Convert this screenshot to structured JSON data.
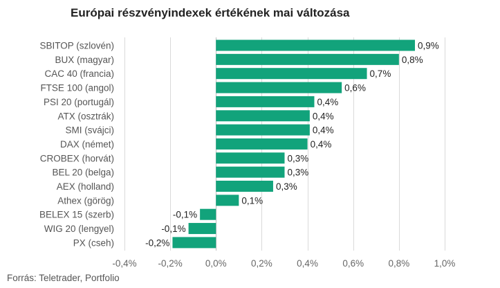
{
  "chart_data": {
    "type": "bar",
    "orientation": "horizontal",
    "title": "Európai részvényindexek értékének mai változása",
    "categories": [
      "SBITOP (szlovén)",
      "BUX (magyar)",
      "CAC 40 (francia)",
      "FTSE 100 (angol)",
      "PSI 20 (portugál)",
      "ATX (osztrák)",
      "SMI (svájci)",
      "DAX (német)",
      "CROBEX (horvát)",
      "BEL 20 (belga)",
      "AEX (holland)",
      "Athex (görög)",
      "BELEX 15 (szerb)",
      "WIG 20 (lengyel)",
      "PX (cseh)"
    ],
    "values": [
      0.87,
      0.8,
      0.66,
      0.55,
      0.43,
      0.41,
      0.41,
      0.4,
      0.3,
      0.3,
      0.25,
      0.1,
      -0.07,
      -0.12,
      -0.19
    ],
    "value_labels": [
      "0,9%",
      "0,8%",
      "0,7%",
      "0,6%",
      "0,4%",
      "0,4%",
      "0,4%",
      "0,4%",
      "0,3%",
      "0,3%",
      "0,3%",
      "0,1%",
      "-0,1%",
      "-0,1%",
      "-0,2%"
    ],
    "xlim": [
      -0.4,
      1.0
    ],
    "ticks": [
      -0.4,
      -0.2,
      0.0,
      0.2,
      0.4,
      0.6,
      0.8,
      1.0
    ],
    "tick_labels": [
      "-0,4%",
      "-0,2%",
      "0,0%",
      "0,2%",
      "0,4%",
      "0,6%",
      "0,8%",
      "1,0%"
    ],
    "grid": true,
    "bar_color": "#12a37b",
    "source": "Forrás: Teletrader, Portfolio"
  }
}
